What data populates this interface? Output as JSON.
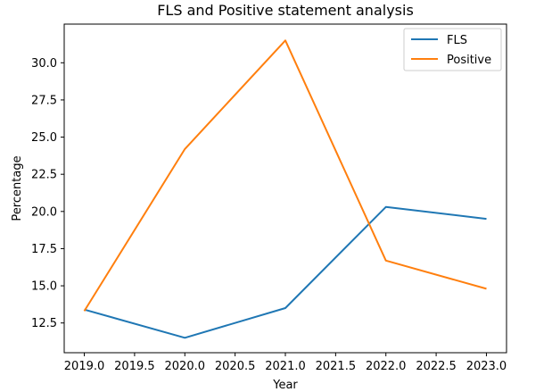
{
  "chart_data": {
    "type": "line",
    "title": "FLS and Positive statement analysis",
    "xlabel": "Year",
    "ylabel": "Percentage",
    "x": [
      2019,
      2020,
      2021,
      2022,
      2023
    ],
    "series": [
      {
        "name": "FLS",
        "color": "#1f77b4",
        "values": [
          13.4,
          11.5,
          13.5,
          20.3,
          19.5
        ]
      },
      {
        "name": "Positive",
        "color": "#ff7f0e",
        "values": [
          13.3,
          24.2,
          31.5,
          16.7,
          14.8
        ]
      }
    ],
    "xlim": [
      2018.8,
      2023.2
    ],
    "ylim": [
      10.5,
      32.6
    ],
    "x_ticks": [
      "2019.0",
      "2019.5",
      "2020.0",
      "2020.5",
      "2021.0",
      "2021.5",
      "2022.0",
      "2022.5",
      "2023.0"
    ],
    "y_ticks": [
      "12.5",
      "15.0",
      "17.5",
      "20.0",
      "22.5",
      "25.0",
      "27.5",
      "30.0"
    ],
    "grid": false,
    "legend_position": "top-right"
  }
}
